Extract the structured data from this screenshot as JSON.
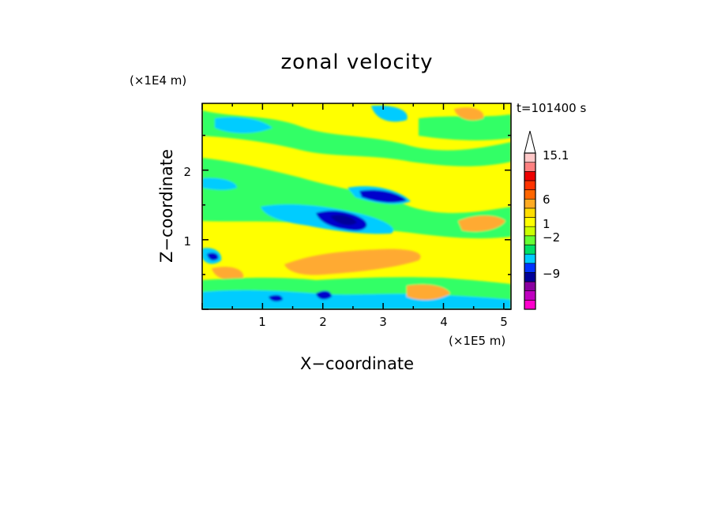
{
  "chart_data": {
    "type": "heatmap",
    "title": "zonal velocity",
    "xlabel": "X−coordinate",
    "ylabel": "Z−coordinate",
    "x_unit": "(×1E5 m)",
    "y_unit": "(×1E4 m)",
    "time_label": "t=101400 s",
    "x_ticks": [
      "1",
      "2",
      "3",
      "4",
      "5"
    ],
    "y_ticks": [
      "1",
      "2"
    ],
    "xlim": [
      0,
      5.12
    ],
    "ylim": [
      0,
      2.96
    ],
    "colorbar": {
      "labels": [
        "15.1",
        "6",
        "1",
        "−2",
        "−9"
      ],
      "label_values": [
        15.1,
        6,
        1,
        -2,
        -9
      ],
      "colors": [
        "#ff00cc",
        "#c000c0",
        "#8a00a0",
        "#000099",
        "#0033ff",
        "#00ccff",
        "#00e066",
        "#66ff33",
        "#ccff00",
        "#ffff00",
        "#ffdd00",
        "#ffaa22",
        "#ff6600",
        "#ff3300",
        "#ee0000",
        "#ff8080",
        "#ffc8c8"
      ],
      "extend": "max"
    },
    "colors": {
      "cyan": "#00ccff",
      "green": "#33ff66",
      "yellow": "#ffff00",
      "orange": "#ffaa33",
      "blue": "#0000cc",
      "navy": "#000099"
    }
  }
}
